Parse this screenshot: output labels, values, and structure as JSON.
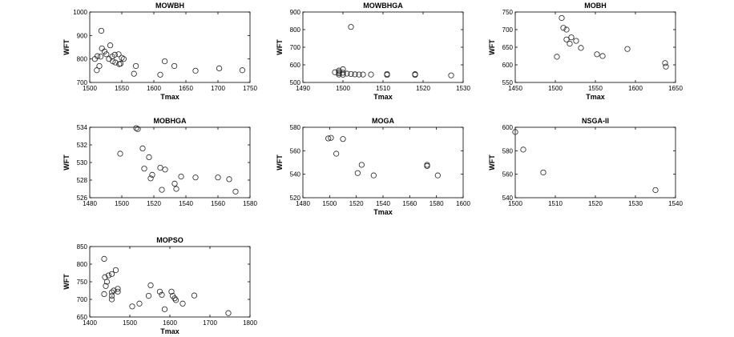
{
  "chart_data": [
    {
      "type": "scatter",
      "title": "MOWBH",
      "xlabel": "Tmax",
      "ylabel": "WFT",
      "xlim": [
        1500,
        1750
      ],
      "ylim": [
        700,
        1000
      ],
      "xticks": [
        "1500",
        "1550",
        "1600",
        "1650",
        "1700",
        "1750"
      ],
      "yticks": [
        "700",
        "800",
        "900",
        "1000"
      ],
      "grid": false,
      "points": [
        [
          1518,
          920
        ],
        [
          1532,
          858
        ],
        [
          1519,
          845
        ],
        [
          1523,
          832
        ],
        [
          1526,
          820
        ],
        [
          1512,
          812
        ],
        [
          1517,
          810
        ],
        [
          1535,
          810
        ],
        [
          1539,
          818
        ],
        [
          1545,
          820
        ],
        [
          1530,
          800
        ],
        [
          1550,
          805
        ],
        [
          1553,
          800
        ],
        [
          1508,
          800
        ],
        [
          1515,
          770
        ],
        [
          1511,
          752
        ],
        [
          1540,
          785
        ],
        [
          1546,
          778
        ],
        [
          1548,
          780
        ],
        [
          1536,
          790
        ],
        [
          1572,
          770
        ],
        [
          1617,
          790
        ],
        [
          1632,
          770
        ],
        [
          1569,
          737
        ],
        [
          1610,
          733
        ],
        [
          1665,
          750
        ],
        [
          1702,
          760
        ],
        [
          1738,
          752
        ]
      ]
    },
    {
      "type": "scatter",
      "title": "MOWBHGA",
      "xlabel": "Tmax",
      "ylabel": "WFT",
      "xlim": [
        1490,
        1530
      ],
      "ylim": [
        500,
        900
      ],
      "xticks": [
        "1490",
        "1500",
        "1510",
        "1520",
        "1530"
      ],
      "yticks": [
        "500",
        "600",
        "700",
        "800",
        "900"
      ],
      "grid": false,
      "points": [
        [
          1502,
          815
        ],
        [
          1500,
          575
        ],
        [
          1499,
          568
        ],
        [
          1499,
          560
        ],
        [
          1498,
          558
        ],
        [
          1499,
          552
        ],
        [
          1500,
          555
        ],
        [
          1501,
          550
        ],
        [
          1502,
          548
        ],
        [
          1503,
          546
        ],
        [
          1504,
          545
        ],
        [
          1505,
          545
        ],
        [
          1507,
          545
        ],
        [
          1511,
          543
        ],
        [
          1518,
          543
        ],
        [
          1527,
          540
        ],
        [
          1511,
          548
        ],
        [
          1518,
          547
        ],
        [
          1499,
          545
        ],
        [
          1500,
          544
        ]
      ]
    },
    {
      "type": "scatter",
      "title": "MOBH",
      "xlabel": "Tmax",
      "ylabel": "WFT",
      "xlim": [
        1450,
        1650
      ],
      "ylim": [
        550,
        750
      ],
      "xticks": [
        "1450",
        "1500",
        "1550",
        "1600",
        "1650"
      ],
      "yticks": [
        "550",
        "600",
        "650",
        "700",
        "750"
      ],
      "grid": false,
      "points": [
        [
          1508,
          733
        ],
        [
          1510,
          705
        ],
        [
          1514,
          700
        ],
        [
          1520,
          678
        ],
        [
          1514,
          672
        ],
        [
          1526,
          668
        ],
        [
          1518,
          660
        ],
        [
          1532,
          648
        ],
        [
          1502,
          623
        ],
        [
          1552,
          630
        ],
        [
          1559,
          625
        ],
        [
          1590,
          645
        ],
        [
          1637,
          605
        ],
        [
          1638,
          595
        ]
      ]
    },
    {
      "type": "scatter",
      "title": "MOBHGA",
      "xlabel": "",
      "ylabel": "WFT",
      "xlim": [
        1480,
        1580
      ],
      "ylim": [
        526,
        534
      ],
      "xticks": [
        "1480",
        "1500",
        "1520",
        "1540",
        "1560",
        "1580"
      ],
      "yticks": [
        "526",
        "528",
        "530",
        "532",
        "534"
      ],
      "grid": false,
      "points": [
        [
          1509,
          533.9
        ],
        [
          1510,
          533.8
        ],
        [
          1513,
          531.6
        ],
        [
          1499,
          531.0
        ],
        [
          1517,
          530.6
        ],
        [
          1514,
          529.3
        ],
        [
          1519,
          528.6
        ],
        [
          1518,
          528.2
        ],
        [
          1524,
          529.4
        ],
        [
          1527,
          529.2
        ],
        [
          1525,
          526.9
        ],
        [
          1533,
          527.6
        ],
        [
          1534,
          527.0
        ],
        [
          1537,
          528.4
        ],
        [
          1546,
          528.3
        ],
        [
          1560,
          528.3
        ],
        [
          1567,
          528.1
        ],
        [
          1571,
          526.7
        ]
      ]
    },
    {
      "type": "scatter",
      "title": "MOGA",
      "xlabel": "Tmax",
      "ylabel": "WFT",
      "xlim": [
        1480,
        1600
      ],
      "ylim": [
        520,
        580
      ],
      "xticks": [
        "1480",
        "1500",
        "1520",
        "1540",
        "1560",
        "1580",
        "1600"
      ],
      "yticks": [
        "520",
        "540",
        "560",
        "580"
      ],
      "grid": false,
      "points": [
        [
          1499,
          570.5
        ],
        [
          1501,
          571
        ],
        [
          1510,
          570
        ],
        [
          1505,
          557.5
        ],
        [
          1524,
          548
        ],
        [
          1521,
          541
        ],
        [
          1533,
          539
        ],
        [
          1573,
          548
        ],
        [
          1573,
          547
        ],
        [
          1581,
          539
        ]
      ]
    },
    {
      "type": "scatter",
      "title": "NSGA-II",
      "xlabel": "",
      "ylabel": "WFT",
      "xlim": [
        1500,
        1540
      ],
      "ylim": [
        540,
        600
      ],
      "xticks": [
        "1500",
        "1510",
        "1520",
        "1530",
        "1540"
      ],
      "yticks": [
        "540",
        "560",
        "580",
        "600"
      ],
      "grid": false,
      "points": [
        [
          1500,
          596
        ],
        [
          1502,
          581
        ],
        [
          1507,
          561.5
        ],
        [
          1535,
          546.5
        ]
      ]
    },
    {
      "type": "scatter",
      "title": "MOPSO",
      "xlabel": "Tmax",
      "ylabel": "WFT",
      "xlim": [
        1400,
        1800
      ],
      "ylim": [
        650,
        850
      ],
      "xticks": [
        "1400",
        "1500",
        "1600",
        "1700",
        "1800"
      ],
      "yticks": [
        "650",
        "700",
        "750",
        "800",
        "850"
      ],
      "grid": false,
      "points": [
        [
          1436,
          815
        ],
        [
          1465,
          783
        ],
        [
          1438,
          763
        ],
        [
          1455,
          772
        ],
        [
          1447,
          768
        ],
        [
          1443,
          750
        ],
        [
          1440,
          738
        ],
        [
          1455,
          720
        ],
        [
          1460,
          725
        ],
        [
          1470,
          730
        ],
        [
          1470,
          722
        ],
        [
          1436,
          715
        ],
        [
          1455,
          710
        ],
        [
          1455,
          700
        ],
        [
          1506,
          680
        ],
        [
          1524,
          688
        ],
        [
          1547,
          710
        ],
        [
          1552,
          740
        ],
        [
          1575,
          722
        ],
        [
          1580,
          713
        ],
        [
          1587,
          672
        ],
        [
          1604,
          722
        ],
        [
          1607,
          710
        ],
        [
          1612,
          703
        ],
        [
          1615,
          698
        ],
        [
          1632,
          688
        ],
        [
          1661,
          711
        ],
        [
          1746,
          661
        ]
      ]
    }
  ]
}
